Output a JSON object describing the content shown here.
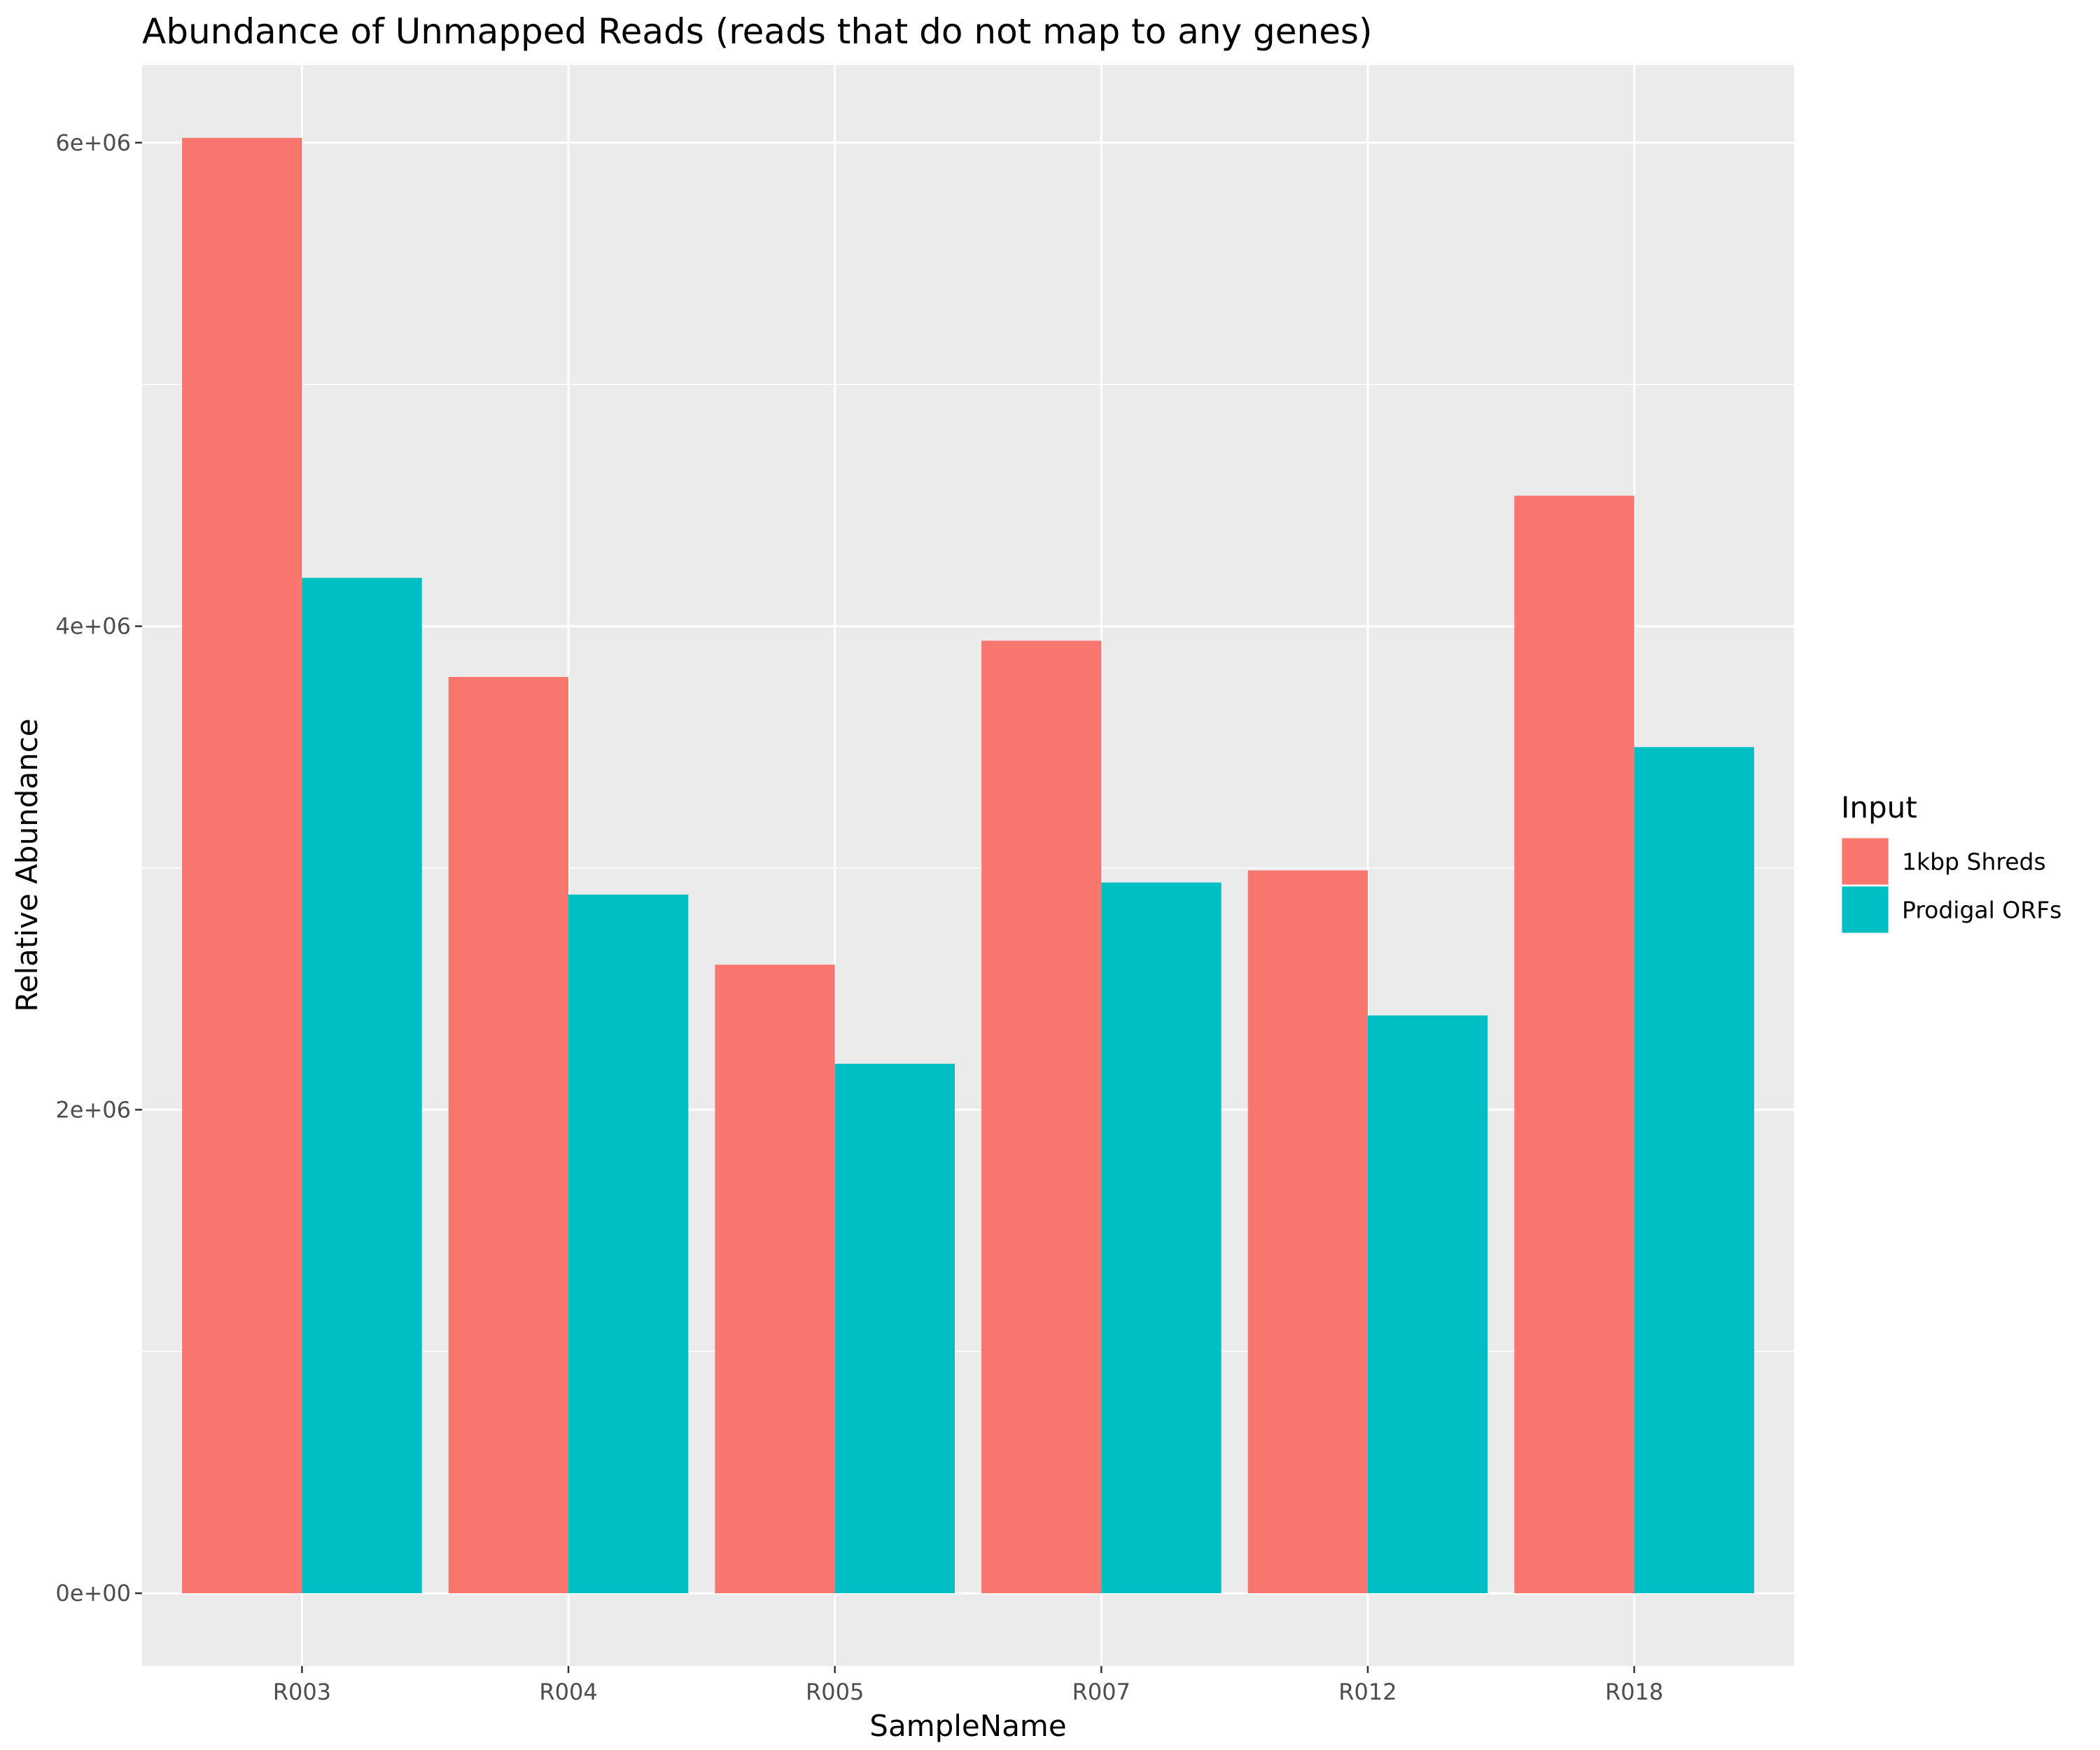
{
  "chart_data": {
    "type": "bar",
    "title": "Abundance of Unmapped Reads (reads that do not map to any genes)",
    "xlabel": "SampleName",
    "ylabel": "Relative Abundance",
    "categories": [
      "R003",
      "R004",
      "R005",
      "R007",
      "R012",
      "R018"
    ],
    "series": [
      {
        "name": "1kbp Shreds",
        "color": "#F8766D",
        "values": [
          6020000,
          3790000,
          2600000,
          3940000,
          2990000,
          4540000
        ]
      },
      {
        "name": "Prodigal ORFs",
        "color": "#00BFC4",
        "values": [
          4200000,
          2890000,
          2190000,
          2940000,
          2390000,
          3500000
        ]
      }
    ],
    "yticks": [
      0,
      2000000,
      4000000,
      6000000
    ],
    "ytick_labels": [
      "0e+00",
      "2e+06",
      "4e+06",
      "6e+06"
    ],
    "ylim": [
      -301000,
      6321000
    ],
    "grid": true,
    "legend": {
      "title": "Input",
      "position": "right"
    },
    "panel_background": "#EBEBEB",
    "grid_color": "#FFFFFF"
  }
}
